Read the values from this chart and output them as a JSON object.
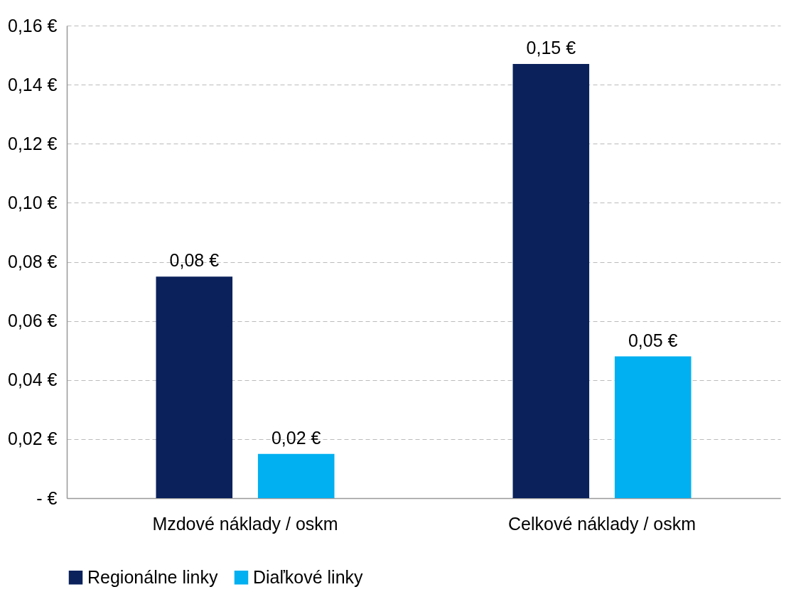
{
  "chart_data": {
    "type": "bar",
    "categories": [
      "Mzdové náklady / oskm",
      "Celkové náklady / oskm"
    ],
    "series": [
      {
        "name": "Regionálne linky",
        "color": "#0a215c",
        "values": [
          0.075,
          0.147
        ],
        "value_labels": [
          "0,08 €",
          "0,15 €"
        ]
      },
      {
        "name": "Diaľkové linky",
        "color": "#00b0f0",
        "values": [
          0.015,
          0.048
        ],
        "value_labels": [
          "0,02 €",
          "0,05 €"
        ]
      }
    ],
    "ylim": [
      0,
      0.16
    ],
    "yticks": [
      {
        "value": 0,
        "label": "-   €"
      },
      {
        "value": 0.02,
        "label": "0,02 €"
      },
      {
        "value": 0.04,
        "label": "0,04 €"
      },
      {
        "value": 0.06,
        "label": "0,06 €"
      },
      {
        "value": 0.08,
        "label": "0,08 €"
      },
      {
        "value": 0.1,
        "label": "0,10 €"
      },
      {
        "value": 0.12,
        "label": "0,12 €"
      },
      {
        "value": 0.14,
        "label": "0,14 €"
      },
      {
        "value": 0.16,
        "label": "0,16 €"
      }
    ],
    "grid": "y",
    "legend": "bottom"
  }
}
